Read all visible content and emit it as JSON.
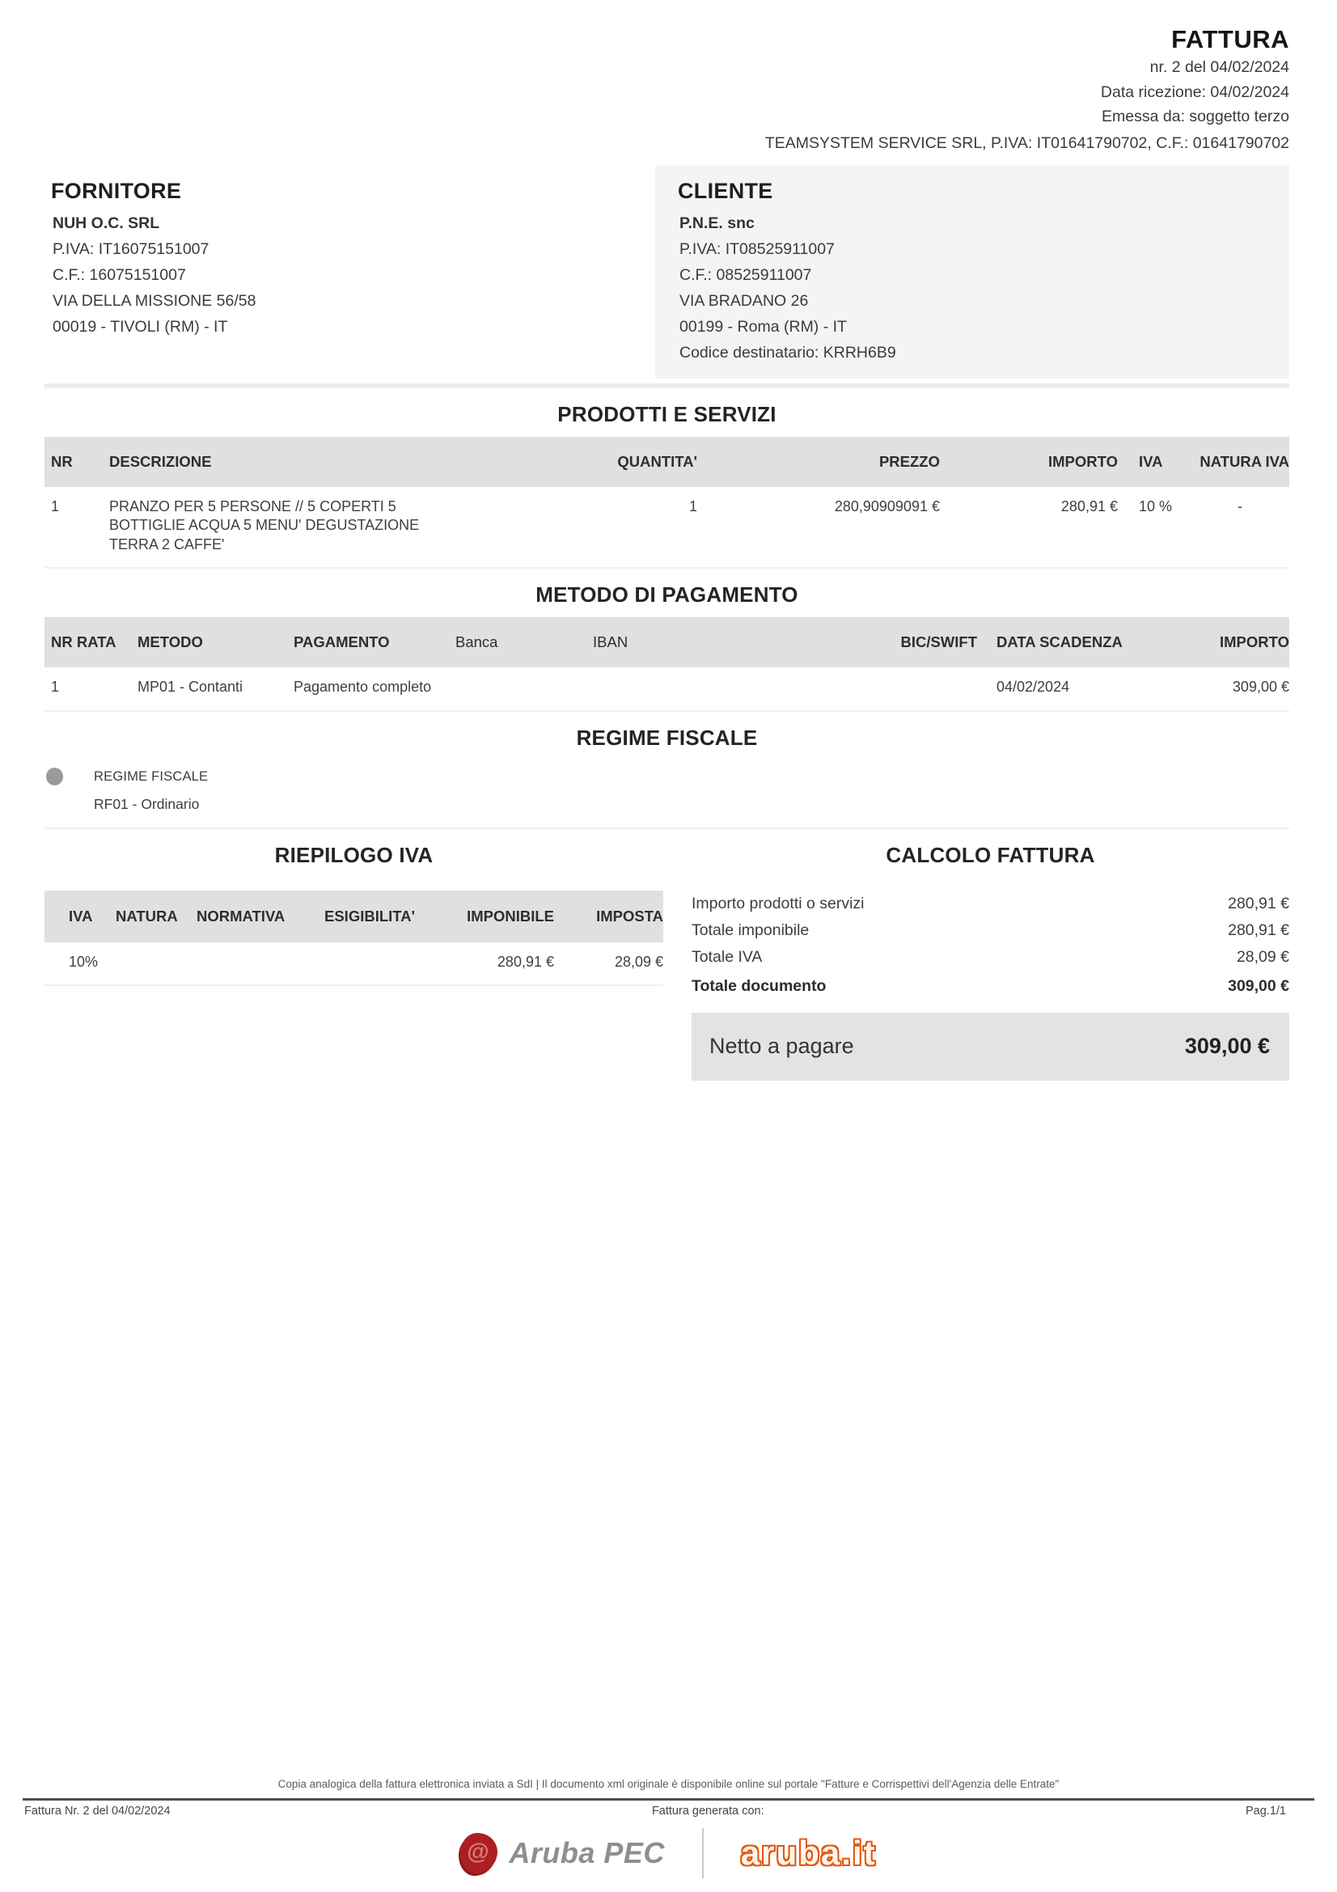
{
  "doc": {
    "title": "FATTURA",
    "number_line": "nr. 2 del 04/02/2024",
    "reception_line": "Data ricezione: 04/02/2024",
    "issued_line": "Emessa da: soggetto terzo",
    "intermediary_line": "TEAMSYSTEM SERVICE SRL, P.IVA: IT01641790702, C.F.: 01641790702"
  },
  "fornitore": {
    "heading": "FORNITORE",
    "name": "NUH O.C. SRL",
    "piva": "P.IVA: IT16075151007",
    "cf": "C.F.: 16075151007",
    "address": "VIA DELLA MISSIONE 56/58",
    "city": "00019 - TIVOLI (RM) - IT"
  },
  "cliente": {
    "heading": "CLIENTE",
    "name": "P.N.E. snc",
    "piva": "P.IVA: IT08525911007",
    "cf": "C.F.: 08525911007",
    "address": "VIA BRADANO 26",
    "city": "00199 - Roma (RM) - IT",
    "codice_destinatario": "Codice destinatario: KRRH6B9"
  },
  "products": {
    "title": "PRODOTTI E SERVIZI",
    "headers": {
      "nr": "NR",
      "descrizione": "DESCRIZIONE",
      "quantita": "QUANTITA'",
      "prezzo": "PREZZO",
      "importo": "IMPORTO",
      "iva": "IVA",
      "natura_iva": "NATURA IVA"
    },
    "rows": [
      {
        "nr": "1",
        "descrizione": "PRANZO PER 5 PERSONE // 5 COPERTI 5 BOTTIGLIE ACQUA 5 MENU' DEGUSTAZIONE TERRA 2 CAFFE'",
        "quantita": "1",
        "prezzo": "280,90909091 €",
        "importo": "280,91 €",
        "iva": "10 %",
        "natura_iva": "-"
      }
    ]
  },
  "payment": {
    "title": "METODO DI PAGAMENTO",
    "headers": {
      "nr_rata": "NR RATA",
      "metodo": "METODO",
      "pagamento": "PAGAMENTO",
      "banca": "Banca",
      "iban": "IBAN",
      "bic_swift": "BIC/SWIFT",
      "data_scadenza": "DATA SCADENZA",
      "importo": "IMPORTO"
    },
    "rows": [
      {
        "nr_rata": "1",
        "metodo": "MP01 - Contanti",
        "pagamento": "Pagamento completo",
        "banca": "",
        "iban": "",
        "bic_swift": "",
        "data_scadenza": "04/02/2024",
        "importo": "309,00 €"
      }
    ]
  },
  "regime": {
    "title": "REGIME FISCALE",
    "label": "REGIME FISCALE",
    "value": "RF01 - Ordinario"
  },
  "riepilogo": {
    "title": "RIEPILOGO IVA",
    "headers": {
      "iva": "IVA",
      "natura": "NATURA",
      "normativa": "NORMATIVA",
      "esigibilita": "ESIGIBILITA'",
      "imponibile": "IMPONIBILE",
      "imposta": "IMPOSTA"
    },
    "rows": [
      {
        "iva": "10%",
        "natura": "",
        "normativa": "",
        "esigibilita": "",
        "imponibile": "280,91 €",
        "imposta": "28,09 €"
      }
    ]
  },
  "calcolo": {
    "title": "CALCOLO FATTURA",
    "rows": [
      {
        "label": "Importo prodotti o servizi",
        "value": "280,91 €"
      },
      {
        "label": "Totale imponibile",
        "value": "280,91 €"
      },
      {
        "label": "Totale IVA",
        "value": "28,09 €"
      },
      {
        "label": "Totale documento",
        "value": "309,00 €"
      }
    ],
    "netto_label": "Netto a pagare",
    "netto_value": "309,00 €"
  },
  "footer": {
    "legal": "Copia analogica della fattura elettronica inviata a SdI | Il documento xml originale è disponibile online sul portale \"Fatture e Corrispettivi dell'Agenzia delle Entrate\"",
    "left": "Fattura Nr. 2 del 04/02/2024",
    "center": "Fattura generata con:",
    "page": "Pag.1/1",
    "logo_pec_at": "@",
    "logo_pec": "Aruba PEC",
    "logo_aruba": "aruba.it"
  },
  "colors": {
    "band_grey": "#e0e0e0",
    "cliente_bg": "#f4f4f4",
    "netto_bg": "#e3e3e3",
    "bullet_grey": "#9a9a9a",
    "aruba_orange": "#e4570f",
    "pec_red": "#ab1f22",
    "pec_grey": "#8e8e8e"
  }
}
